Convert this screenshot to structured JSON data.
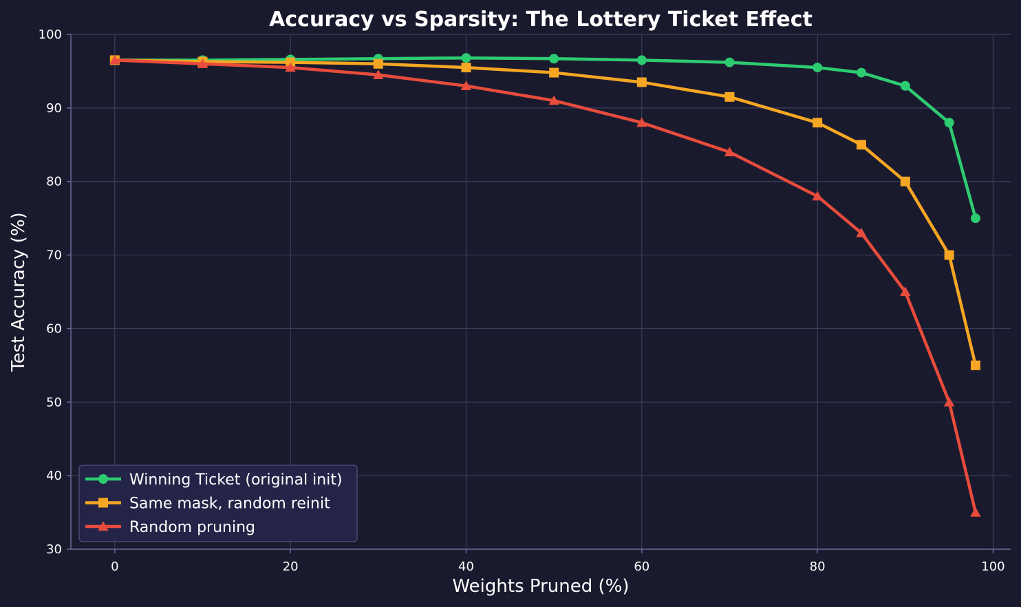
{
  "chart_data": {
    "type": "line",
    "title": "Accuracy vs Sparsity: The Lottery Ticket Effect",
    "xlabel": "Weights Pruned (%)",
    "ylabel": "Test Accuracy (%)",
    "xlim": [
      -5,
      102
    ],
    "ylim": [
      30,
      100
    ],
    "xticks": [
      0,
      20,
      40,
      60,
      80,
      100
    ],
    "yticks": [
      30,
      40,
      50,
      60,
      70,
      80,
      90,
      100
    ],
    "grid": true,
    "legend_position": "lower-left",
    "x": [
      0,
      10,
      20,
      30,
      40,
      50,
      60,
      70,
      80,
      85,
      90,
      95,
      98
    ],
    "series": [
      {
        "name": "Winning Ticket (original init)",
        "color": "#2ecc71",
        "marker": "circle",
        "values": [
          96.5,
          96.5,
          96.6,
          96.7,
          96.8,
          96.7,
          96.5,
          96.2,
          95.5,
          94.8,
          93.0,
          88.0,
          75.0
        ]
      },
      {
        "name": "Same mask, random reinit",
        "color": "#f5a623",
        "marker": "square",
        "values": [
          96.5,
          96.3,
          96.2,
          96.0,
          95.5,
          94.8,
          93.5,
          91.5,
          88.0,
          85.0,
          80.0,
          70.0,
          55.0
        ]
      },
      {
        "name": "Random pruning",
        "color": "#e74c3c",
        "marker": "triangle",
        "values": [
          96.5,
          96.0,
          95.5,
          94.5,
          93.0,
          91.0,
          88.0,
          84.0,
          78.0,
          73.0,
          65.0,
          50.0,
          35.0
        ]
      }
    ],
    "colors": {
      "background": "#1a1a2e",
      "grid": "#3d3d5c",
      "axis": "#6a6a9a",
      "legend_bg": "#25254a",
      "legend_border": "#4a4a70"
    }
  }
}
